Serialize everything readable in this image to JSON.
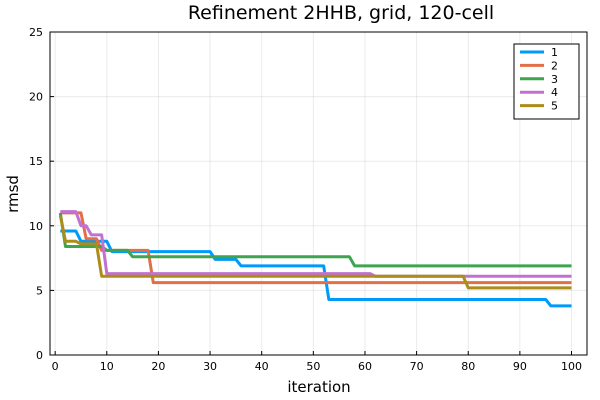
{
  "chart_data": {
    "type": "line",
    "title": "Refinement 2HHB, grid, 120-cell",
    "xlabel": "iteration",
    "ylabel": "rmsd",
    "xlim": [
      -1,
      103
    ],
    "ylim": [
      0,
      25
    ],
    "xticks": [
      0,
      10,
      20,
      30,
      40,
      50,
      60,
      70,
      80,
      90,
      100
    ],
    "yticks": [
      0,
      5,
      10,
      15,
      20,
      25
    ],
    "grid": true,
    "legend_position": "top-right",
    "line_shape": "step",
    "series": [
      {
        "name": "1",
        "color": "#009AFA",
        "points": [
          [
            1,
            9.6
          ],
          [
            4,
            9.6
          ],
          [
            5,
            8.8
          ],
          [
            9,
            8.8
          ],
          [
            10,
            8.8
          ],
          [
            11,
            8.0
          ],
          [
            30,
            8.0
          ],
          [
            31,
            7.4
          ],
          [
            35,
            7.4
          ],
          [
            36,
            6.9
          ],
          [
            52,
            6.9
          ],
          [
            53,
            4.3
          ],
          [
            95,
            4.3
          ],
          [
            96,
            3.8
          ],
          [
            100,
            3.8
          ]
        ]
      },
      {
        "name": "2",
        "color": "#E36F47",
        "points": [
          [
            1,
            11.0
          ],
          [
            5,
            11.0
          ],
          [
            6,
            9.0
          ],
          [
            8,
            9.0
          ],
          [
            9,
            8.1
          ],
          [
            18,
            8.1
          ],
          [
            19,
            5.6
          ],
          [
            100,
            5.6
          ]
        ]
      },
      {
        "name": "3",
        "color": "#3EA44E",
        "points": [
          [
            1,
            11.0
          ],
          [
            2,
            8.4
          ],
          [
            9,
            8.4
          ],
          [
            10,
            8.1
          ],
          [
            14,
            8.1
          ],
          [
            15,
            7.6
          ],
          [
            57,
            7.6
          ],
          [
            58,
            6.9
          ],
          [
            100,
            6.9
          ]
        ]
      },
      {
        "name": "4",
        "color": "#C271D2",
        "points": [
          [
            1,
            11.1
          ],
          [
            4,
            11.1
          ],
          [
            5,
            10.0
          ],
          [
            6,
            10.0
          ],
          [
            7,
            9.3
          ],
          [
            9,
            9.3
          ],
          [
            10,
            6.3
          ],
          [
            61,
            6.3
          ],
          [
            62,
            6.1
          ],
          [
            100,
            6.1
          ]
        ]
      },
      {
        "name": "5",
        "color": "#AC8D18",
        "points": [
          [
            1,
            10.8
          ],
          [
            2,
            8.8
          ],
          [
            4,
            8.8
          ],
          [
            5,
            8.6
          ],
          [
            8,
            8.6
          ],
          [
            9,
            6.1
          ],
          [
            79,
            6.1
          ],
          [
            80,
            5.2
          ],
          [
            100,
            5.2
          ]
        ]
      }
    ]
  }
}
